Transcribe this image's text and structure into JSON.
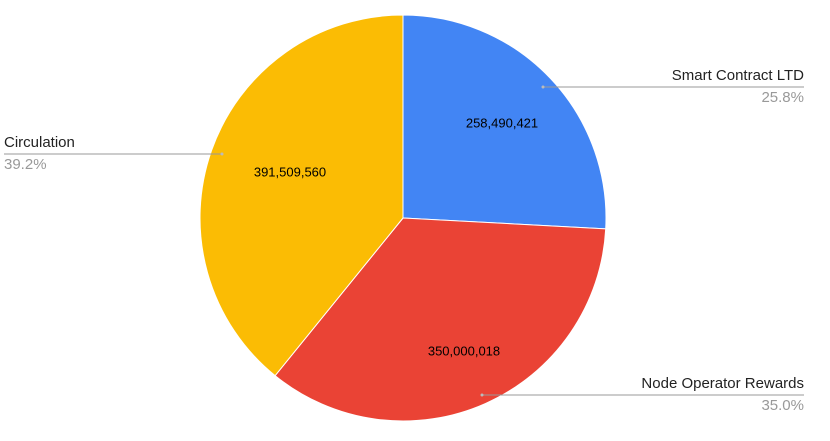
{
  "chart_data": {
    "type": "pie",
    "categories": [
      "Smart Contract LTD",
      "Node Operator Rewards",
      "Circulation"
    ],
    "values": [
      258490421,
      350000018,
      391509560
    ],
    "value_labels": [
      "258,490,421",
      "350,000,018",
      "391,509,560"
    ],
    "percent_labels": [
      "25.8%",
      "35.0%",
      "39.2%"
    ],
    "colors": [
      "#4285f4",
      "#ea4335",
      "#fbbc04"
    ]
  }
}
